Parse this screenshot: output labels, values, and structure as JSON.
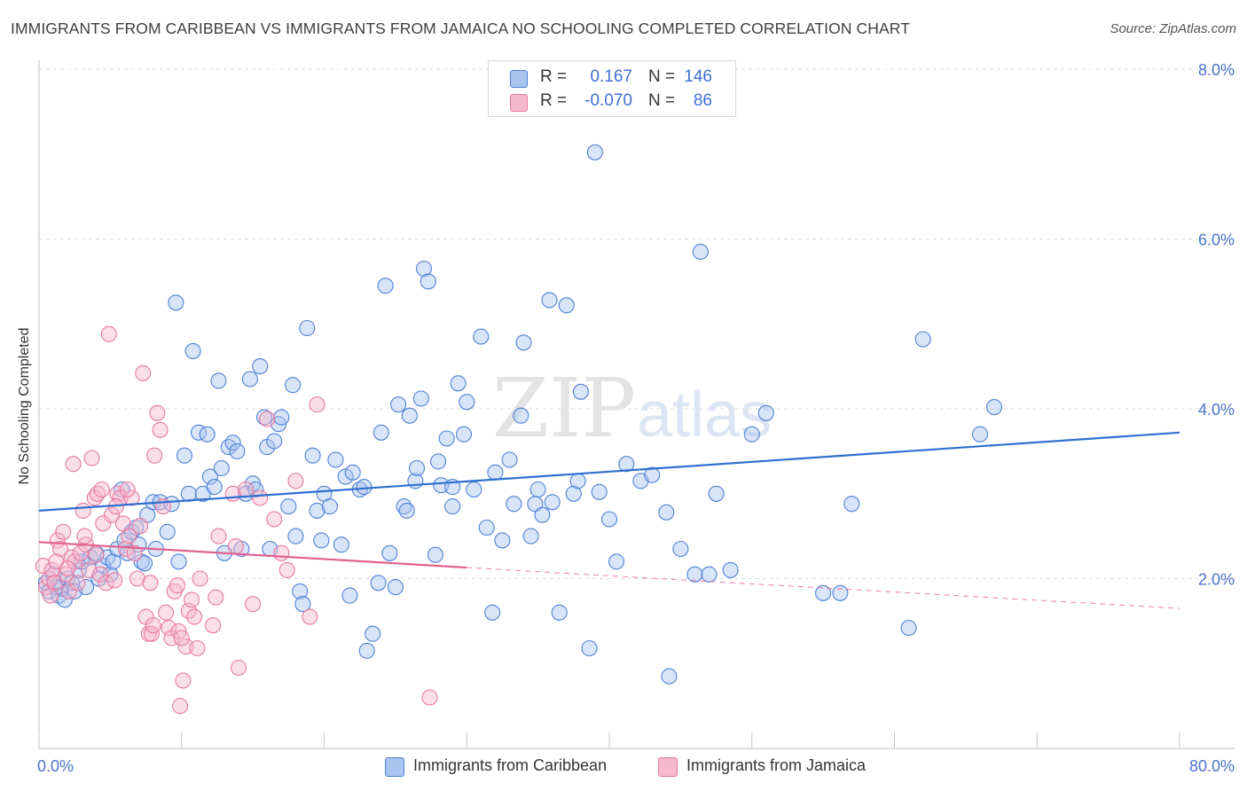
{
  "title": "IMMIGRANTS FROM CARIBBEAN VS IMMIGRANTS FROM JAMAICA NO SCHOOLING COMPLETED CORRELATION CHART",
  "source": "Source: ZipAtlas.com",
  "watermark": {
    "zip": "ZIP",
    "atlas": "atlas"
  },
  "colors": {
    "blue_fill": "#a9c4f0",
    "blue_stroke": "#4f81d6",
    "blue_line": "#2f6fd0",
    "pink_fill": "#f6b8cc",
    "pink_stroke": "#e57aa0",
    "pink_line": "#e0628f",
    "tick_text": "#4a74c9",
    "grid": "#dddddd"
  },
  "legend": {
    "rows": [
      {
        "r_label": "R =",
        "r_value": "0.167",
        "n_label": "N =",
        "n_value": "146"
      },
      {
        "r_label": "R =",
        "r_value": "-0.070",
        "n_label": "N =",
        "n_value": "86"
      }
    ]
  },
  "chart_data": {
    "type": "scatter",
    "title": "IMMIGRANTS FROM CARIBBEAN VS IMMIGRANTS FROM JAMAICA NO SCHOOLING COMPLETED CORRELATION CHART",
    "xlabel": "",
    "ylabel": "No Schooling Completed",
    "xlim": [
      0,
      80
    ],
    "ylim": [
      0,
      8.0
    ],
    "x_tick_labels": [
      "0.0%",
      "80.0%"
    ],
    "y_tick_values": [
      2.0,
      4.0,
      6.0,
      8.0
    ],
    "y_tick_labels": [
      "2.0%",
      "4.0%",
      "6.0%",
      "8.0%"
    ],
    "grid": "horizontal dashed",
    "legend_placement": "bottom",
    "series": [
      {
        "name": "Immigrants from Caribbean",
        "color": "blue",
        "trend": {
          "x": [
            0,
            80
          ],
          "y": [
            2.8,
            3.72
          ],
          "dashed_from": null
        },
        "points": [
          [
            0.5,
            1.95
          ],
          [
            0.7,
            1.85
          ],
          [
            1.0,
            2.05
          ],
          [
            1.2,
            1.9
          ],
          [
            1.4,
            1.8
          ],
          [
            1.6,
            1.88
          ],
          [
            1.8,
            1.75
          ],
          [
            2.0,
            2.0
          ],
          [
            2.3,
            1.95
          ],
          [
            2.5,
            1.85
          ],
          [
            2.8,
            2.1
          ],
          [
            3.0,
            2.2
          ],
          [
            3.3,
            1.9
          ],
          [
            3.6,
            2.25
          ],
          [
            4.0,
            2.3
          ],
          [
            4.2,
            2.0
          ],
          [
            4.5,
            2.15
          ],
          [
            4.8,
            2.25
          ],
          [
            5.0,
            2.05
          ],
          [
            5.2,
            2.2
          ],
          [
            5.5,
            2.35
          ],
          [
            5.8,
            3.05
          ],
          [
            6.0,
            2.45
          ],
          [
            6.2,
            2.3
          ],
          [
            6.5,
            2.55
          ],
          [
            6.8,
            2.6
          ],
          [
            7.0,
            2.4
          ],
          [
            7.2,
            2.2
          ],
          [
            7.4,
            2.18
          ],
          [
            7.6,
            2.75
          ],
          [
            8.0,
            2.9
          ],
          [
            8.2,
            2.35
          ],
          [
            8.5,
            2.9
          ],
          [
            9.0,
            2.55
          ],
          [
            9.3,
            2.88
          ],
          [
            9.6,
            5.25
          ],
          [
            9.8,
            2.2
          ],
          [
            10.2,
            3.45
          ],
          [
            10.5,
            3.0
          ],
          [
            10.8,
            4.68
          ],
          [
            11.2,
            3.72
          ],
          [
            11.5,
            3.0
          ],
          [
            11.8,
            3.7
          ],
          [
            12.0,
            3.2
          ],
          [
            12.3,
            3.08
          ],
          [
            12.6,
            4.33
          ],
          [
            13.0,
            2.3
          ],
          [
            13.3,
            3.55
          ],
          [
            13.6,
            3.6
          ],
          [
            13.9,
            3.5
          ],
          [
            14.2,
            2.35
          ],
          [
            14.5,
            3.0
          ],
          [
            14.8,
            4.35
          ],
          [
            15.0,
            3.12
          ],
          [
            15.2,
            3.05
          ],
          [
            15.5,
            4.5
          ],
          [
            15.8,
            3.9
          ],
          [
            16.0,
            3.55
          ],
          [
            16.2,
            2.35
          ],
          [
            16.5,
            3.62
          ],
          [
            16.8,
            3.82
          ],
          [
            17.0,
            3.9
          ],
          [
            17.5,
            2.85
          ],
          [
            17.8,
            4.28
          ],
          [
            18.0,
            2.5
          ],
          [
            18.3,
            1.85
          ],
          [
            18.5,
            1.7
          ],
          [
            18.8,
            4.95
          ],
          [
            19.2,
            3.45
          ],
          [
            19.5,
            2.8
          ],
          [
            19.8,
            2.45
          ],
          [
            20.0,
            3.0
          ],
          [
            20.4,
            2.85
          ],
          [
            20.8,
            3.4
          ],
          [
            21.2,
            2.4
          ],
          [
            21.5,
            3.2
          ],
          [
            21.8,
            1.8
          ],
          [
            22.0,
            3.25
          ],
          [
            22.5,
            3.05
          ],
          [
            22.8,
            3.08
          ],
          [
            23.0,
            1.15
          ],
          [
            23.4,
            1.35
          ],
          [
            23.8,
            1.95
          ],
          [
            24.0,
            3.72
          ],
          [
            24.3,
            5.45
          ],
          [
            24.6,
            2.3
          ],
          [
            25.0,
            1.9
          ],
          [
            25.2,
            4.05
          ],
          [
            25.6,
            2.85
          ],
          [
            25.8,
            2.8
          ],
          [
            26.0,
            3.92
          ],
          [
            26.4,
            3.15
          ],
          [
            26.8,
            4.12
          ],
          [
            27.0,
            5.65
          ],
          [
            27.3,
            5.5
          ],
          [
            27.8,
            2.28
          ],
          [
            28.0,
            3.38
          ],
          [
            28.2,
            3.1
          ],
          [
            28.6,
            3.65
          ],
          [
            29.0,
            3.08
          ],
          [
            29.4,
            4.3
          ],
          [
            29.8,
            3.7
          ],
          [
            30.0,
            4.08
          ],
          [
            30.5,
            3.05
          ],
          [
            31.0,
            4.85
          ],
          [
            31.4,
            2.6
          ],
          [
            31.8,
            1.6
          ],
          [
            32.0,
            3.25
          ],
          [
            32.5,
            2.45
          ],
          [
            33.0,
            3.4
          ],
          [
            33.3,
            2.88
          ],
          [
            33.8,
            3.92
          ],
          [
            34.0,
            4.78
          ],
          [
            34.5,
            2.5
          ],
          [
            34.8,
            2.88
          ],
          [
            35.0,
            3.05
          ],
          [
            35.3,
            2.75
          ],
          [
            35.8,
            5.28
          ],
          [
            36.5,
            1.6
          ],
          [
            37.0,
            5.22
          ],
          [
            37.5,
            3.0
          ],
          [
            37.8,
            3.15
          ],
          [
            38.0,
            4.2
          ],
          [
            38.6,
            1.18
          ],
          [
            39.0,
            7.02
          ],
          [
            39.3,
            3.02
          ],
          [
            40.0,
            2.7
          ],
          [
            40.5,
            2.2
          ],
          [
            41.2,
            3.35
          ],
          [
            42.2,
            3.15
          ],
          [
            43.0,
            3.22
          ],
          [
            44.0,
            2.78
          ],
          [
            44.2,
            0.85
          ],
          [
            45.0,
            2.35
          ],
          [
            46.0,
            2.05
          ],
          [
            46.4,
            5.85
          ],
          [
            47.0,
            2.05
          ],
          [
            47.5,
            3.0
          ],
          [
            48.5,
            2.1
          ],
          [
            50.0,
            3.7
          ],
          [
            51.0,
            3.95
          ],
          [
            55.0,
            1.83
          ],
          [
            56.2,
            1.83
          ],
          [
            57.0,
            2.88
          ],
          [
            61.0,
            1.42
          ],
          [
            62.0,
            4.82
          ],
          [
            66.0,
            3.7
          ],
          [
            67.0,
            4.02
          ],
          [
            26.5,
            3.3
          ],
          [
            29.0,
            2.85
          ],
          [
            12.8,
            3.3
          ],
          [
            36.0,
            2.9
          ]
        ]
      },
      {
        "name": "Immigrants from Jamaica",
        "color": "pink",
        "trend": {
          "x": [
            0,
            30,
            80
          ],
          "y": [
            2.43,
            2.13,
            1.65
          ],
          "dashed_from": 30
        },
        "points": [
          [
            0.3,
            2.15
          ],
          [
            0.5,
            1.9
          ],
          [
            0.7,
            2.0
          ],
          [
            0.9,
            2.1
          ],
          [
            1.1,
            1.95
          ],
          [
            1.3,
            2.45
          ],
          [
            1.5,
            2.35
          ],
          [
            1.7,
            2.55
          ],
          [
            1.9,
            2.05
          ],
          [
            2.1,
            1.85
          ],
          [
            2.3,
            2.25
          ],
          [
            2.5,
            2.2
          ],
          [
            2.7,
            1.95
          ],
          [
            2.9,
            2.3
          ],
          [
            3.1,
            2.8
          ],
          [
            3.3,
            2.4
          ],
          [
            3.5,
            2.1
          ],
          [
            3.7,
            3.42
          ],
          [
            3.9,
            2.95
          ],
          [
            4.1,
            3.0
          ],
          [
            4.3,
            2.05
          ],
          [
            4.5,
            2.65
          ],
          [
            4.7,
            1.95
          ],
          [
            4.9,
            4.88
          ],
          [
            5.1,
            2.75
          ],
          [
            5.3,
            1.98
          ],
          [
            5.5,
            3.0
          ],
          [
            5.7,
            2.95
          ],
          [
            5.9,
            2.65
          ],
          [
            6.1,
            2.35
          ],
          [
            6.3,
            2.5
          ],
          [
            6.5,
            2.95
          ],
          [
            6.7,
            2.3
          ],
          [
            6.9,
            2.0
          ],
          [
            7.1,
            2.62
          ],
          [
            7.3,
            4.42
          ],
          [
            7.5,
            1.55
          ],
          [
            7.7,
            1.35
          ],
          [
            7.9,
            1.35
          ],
          [
            8.1,
            3.45
          ],
          [
            8.3,
            3.95
          ],
          [
            8.5,
            3.75
          ],
          [
            8.7,
            2.85
          ],
          [
            8.9,
            1.6
          ],
          [
            9.1,
            1.42
          ],
          [
            9.3,
            1.3
          ],
          [
            9.5,
            1.85
          ],
          [
            9.7,
            1.92
          ],
          [
            9.9,
            0.5
          ],
          [
            10.1,
            0.8
          ],
          [
            10.3,
            1.2
          ],
          [
            10.5,
            1.62
          ],
          [
            10.7,
            1.75
          ],
          [
            10.9,
            1.55
          ],
          [
            11.1,
            1.18
          ],
          [
            11.3,
            2.0
          ],
          [
            12.4,
            1.78
          ],
          [
            12.6,
            2.5
          ],
          [
            13.6,
            3.0
          ],
          [
            13.8,
            2.38
          ],
          [
            14.0,
            0.95
          ],
          [
            14.5,
            3.05
          ],
          [
            15.0,
            1.7
          ],
          [
            15.5,
            2.95
          ],
          [
            16.0,
            3.88
          ],
          [
            16.5,
            2.7
          ],
          [
            17.0,
            2.3
          ],
          [
            17.4,
            2.1
          ],
          [
            18.0,
            3.15
          ],
          [
            19.0,
            1.55
          ],
          [
            19.5,
            4.05
          ],
          [
            27.4,
            0.6
          ],
          [
            2.4,
            3.35
          ],
          [
            4.4,
            3.05
          ],
          [
            6.2,
            3.05
          ],
          [
            8.0,
            1.45
          ],
          [
            9.8,
            1.38
          ],
          [
            12.2,
            1.45
          ],
          [
            3.2,
            2.5
          ],
          [
            1.2,
            2.2
          ],
          [
            0.8,
            1.8
          ],
          [
            5.4,
            2.85
          ],
          [
            7.8,
            1.95
          ],
          [
            10.0,
            1.3
          ],
          [
            4.0,
            2.28
          ],
          [
            2.0,
            2.12
          ]
        ]
      }
    ]
  },
  "bottom_legend": {
    "items": [
      {
        "label": "Immigrants from Caribbean"
      },
      {
        "label": "Immigrants from Jamaica"
      }
    ]
  }
}
